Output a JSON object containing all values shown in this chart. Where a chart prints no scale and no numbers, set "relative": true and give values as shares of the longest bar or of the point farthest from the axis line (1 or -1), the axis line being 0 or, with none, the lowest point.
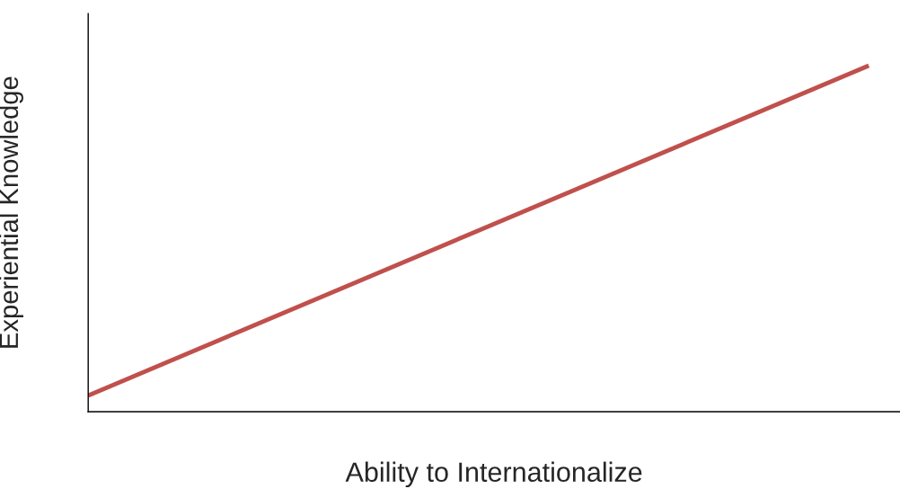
{
  "chart_data": {
    "type": "line",
    "relative": true,
    "xlabel": "Ability to Internationalize",
    "ylabel": "Experiential Knowledge",
    "categories": [
      null,
      null
    ],
    "series": [
      {
        "color": "#c0504d",
        "values": [
          0.047,
          1
        ]
      }
    ],
    "tick_labels": false,
    "marker": "none",
    "line_style": "solid"
  }
}
